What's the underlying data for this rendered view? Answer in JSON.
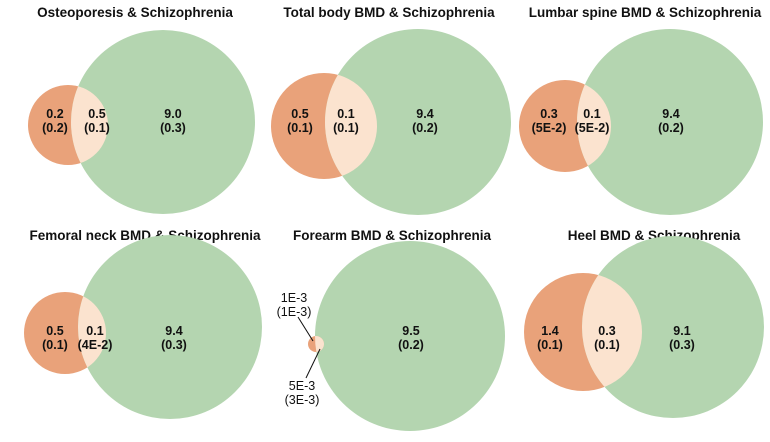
{
  "colors": {
    "trait_circle": "#e9a27a",
    "schizophrenia_circle": "#b4d5b0",
    "overlap": "#fbe3cf",
    "text": "#111111"
  },
  "panels": [
    {
      "title": "Osteoporesis & Schizophrenia",
      "left_only": {
        "value": "0.2",
        "se": "(0.2)"
      },
      "overlap": {
        "value": "0.5",
        "se": "(0.1)"
      },
      "right_only": {
        "value": "9.0",
        "se": "(0.3)"
      }
    },
    {
      "title": "Total body BMD & Schizophrenia",
      "left_only": {
        "value": "0.5",
        "se": "(0.1)"
      },
      "overlap": {
        "value": "0.1",
        "se": "(0.1)"
      },
      "right_only": {
        "value": "9.4",
        "se": "(0.2)"
      }
    },
    {
      "title": "Lumbar spine BMD & Schizophrenia",
      "left_only": {
        "value": "0.3",
        "se": "(5E-2)"
      },
      "overlap": {
        "value": "0.1",
        "se": "(5E-2)"
      },
      "right_only": {
        "value": "9.4",
        "se": "(0.2)"
      }
    },
    {
      "title": "Femoral neck BMD & Schizophrenia",
      "left_only": {
        "value": "0.5",
        "se": "(0.1)"
      },
      "overlap": {
        "value": "0.1",
        "se": "(4E-2)"
      },
      "right_only": {
        "value": "9.4",
        "se": "(0.3)"
      }
    },
    {
      "title": "Forearm BMD & Schizophrenia",
      "left_only": {
        "value": "1E-3",
        "se": "(1E-3)"
      },
      "overlap": {
        "value": "5E-3",
        "se": "(3E-3)"
      },
      "right_only": {
        "value": "9.5",
        "se": "(0.2)"
      }
    },
    {
      "title": "Heel BMD & Schizophrenia",
      "left_only": {
        "value": "1.4",
        "se": "(0.1)"
      },
      "overlap": {
        "value": "0.3",
        "se": "(0.1)"
      },
      "right_only": {
        "value": "9.1",
        "se": "(0.3)"
      }
    }
  ]
}
